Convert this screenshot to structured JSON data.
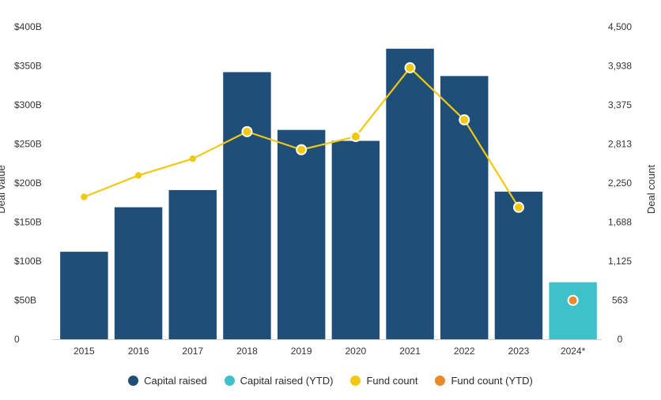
{
  "chart_data": {
    "type": "bar",
    "categories": [
      "2015",
      "2016",
      "2017",
      "2018",
      "2019",
      "2020",
      "2021",
      "2022",
      "2023",
      "2024*"
    ],
    "series": [
      {
        "name": "Capital raised",
        "kind": "bar",
        "axis": "left",
        "color": "#1F4E79",
        "values": [
          112,
          169,
          191,
          342,
          268,
          254,
          372,
          337,
          189,
          null
        ]
      },
      {
        "name": "Capital raised (YTD)",
        "kind": "bar",
        "axis": "left",
        "color": "#3FC1C9",
        "values": [
          null,
          null,
          null,
          null,
          null,
          null,
          null,
          null,
          null,
          73
        ]
      },
      {
        "name": "Fund count",
        "kind": "line",
        "axis": "right",
        "color": "#F2C811",
        "values": [
          2050,
          2360,
          2600,
          2990,
          2730,
          2920,
          3910,
          3160,
          1900,
          null
        ]
      },
      {
        "name": "Fund count (YTD)",
        "kind": "point",
        "axis": "right",
        "color": "#E8892B",
        "values": [
          null,
          null,
          null,
          null,
          null,
          null,
          null,
          null,
          null,
          560
        ]
      }
    ],
    "ylabel": "Deal value",
    "y2label": "Deal count",
    "ylim": [
      0,
      400
    ],
    "y2lim": [
      0,
      4500
    ],
    "yticks": [
      "0",
      "$50B",
      "$100B",
      "$150B",
      "$200B",
      "$250B",
      "$300B",
      "$350B",
      "$400B"
    ],
    "y2ticks": [
      "0",
      "563",
      "1,125",
      "1,688",
      "2,250",
      "2,813",
      "3,375",
      "3,938",
      "4,500"
    ],
    "grid": false,
    "legend_position": "bottom-center"
  }
}
